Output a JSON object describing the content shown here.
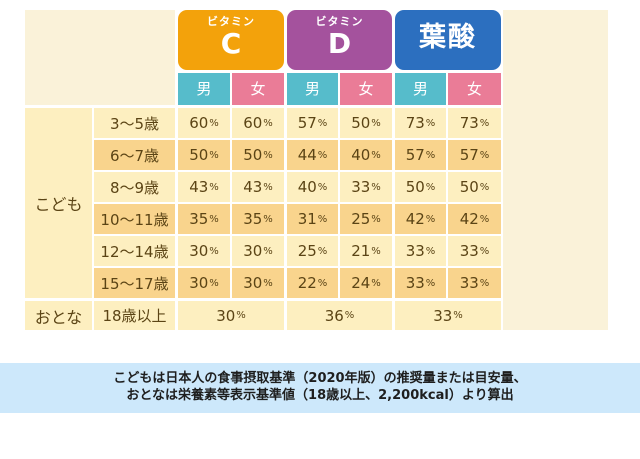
{
  "chart_data": {
    "type": "table",
    "title": "",
    "column_groups": [
      {
        "sub": "ビタミン",
        "main": "C",
        "color": "#f3a20b"
      },
      {
        "sub": "ビタミン",
        "main": "D",
        "color": "#a4529d"
      },
      {
        "sub": "",
        "main": "葉酸",
        "color": "#2c6fbf"
      }
    ],
    "gender_labels": {
      "male": "男",
      "female": "女"
    },
    "row_groups": [
      {
        "label": "こども",
        "rows": [
          {
            "age": "3〜5歳",
            "values": [
              60,
              60,
              57,
              50,
              73,
              73
            ]
          },
          {
            "age": "6〜7歳",
            "values": [
              50,
              50,
              44,
              40,
              57,
              57
            ]
          },
          {
            "age": "8〜9歳",
            "values": [
              43,
              43,
              40,
              33,
              50,
              50
            ]
          },
          {
            "age": "10〜11歳",
            "values": [
              35,
              35,
              31,
              25,
              42,
              42
            ]
          },
          {
            "age": "12〜14歳",
            "values": [
              30,
              30,
              25,
              21,
              33,
              33
            ]
          },
          {
            "age": "15〜17歳",
            "values": [
              30,
              30,
              22,
              24,
              33,
              33
            ]
          }
        ]
      },
      {
        "label": "おとな",
        "rows": [
          {
            "age": "18歳以上",
            "values_combined": [
              30,
              36,
              33
            ]
          }
        ]
      }
    ],
    "unit": "%"
  },
  "headers": {
    "vitc": {
      "sub": "ビタミン",
      "main": "C"
    },
    "vitd": {
      "sub": "ビタミン",
      "main": "D"
    },
    "folic": {
      "main": "葉酸"
    },
    "male": "男",
    "female": "女"
  },
  "groups": {
    "child": "こども",
    "adult": "おとな"
  },
  "rows": [
    {
      "age": "3〜5歳",
      "v": [
        "60",
        "60",
        "57",
        "50",
        "73",
        "73"
      ]
    },
    {
      "age": "6〜7歳",
      "v": [
        "50",
        "50",
        "44",
        "40",
        "57",
        "57"
      ]
    },
    {
      "age": "8〜9歳",
      "v": [
        "43",
        "43",
        "40",
        "33",
        "50",
        "50"
      ]
    },
    {
      "age": "10〜11歳",
      "v": [
        "35",
        "35",
        "31",
        "25",
        "42",
        "42"
      ]
    },
    {
      "age": "12〜14歳",
      "v": [
        "30",
        "30",
        "25",
        "21",
        "33",
        "33"
      ]
    },
    {
      "age": "15〜17歳",
      "v": [
        "30",
        "30",
        "22",
        "24",
        "33",
        "33"
      ]
    }
  ],
  "adult_row": {
    "age": "18歳以上",
    "v": [
      "30",
      "36",
      "33"
    ]
  },
  "pct": "%",
  "note": {
    "line1": "こどもは日本人の食事摂取基準（2020年版）の推奨量または目安量、",
    "line2": "おとなは栄養素等表示基準値（18歳以上、2,200kcal）より算出"
  }
}
